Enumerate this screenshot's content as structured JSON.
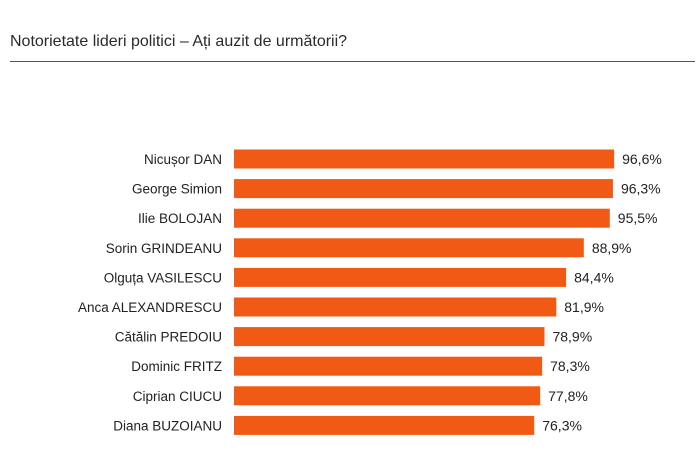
{
  "chart_data": {
    "type": "bar",
    "orientation": "horizontal",
    "title": "Notorietate lideri politici – Ați auzit de următorii?",
    "categories": [
      "Nicușor DAN",
      "George Simion",
      "Ilie BOLOJAN",
      "Sorin GRINDEANU",
      "Olguța VASILESCU",
      "Anca ALEXANDRESCU",
      "Cătălin PREDOIU",
      "Dominic FRITZ",
      "Ciprian CIUCU",
      "Diana BUZOIANU"
    ],
    "values": [
      96.6,
      96.3,
      95.5,
      88.9,
      84.4,
      81.9,
      78.9,
      78.3,
      77.8,
      76.3
    ],
    "value_labels": [
      "96,6%",
      "96,3%",
      "95,5%",
      "88,9%",
      "84,4%",
      "81,9%",
      "78,9%",
      "78,3%",
      "77,8%",
      "76,3%"
    ],
    "xlim": [
      0,
      100
    ],
    "bar_color": "#f05a14",
    "grid": false,
    "legend": "none"
  }
}
